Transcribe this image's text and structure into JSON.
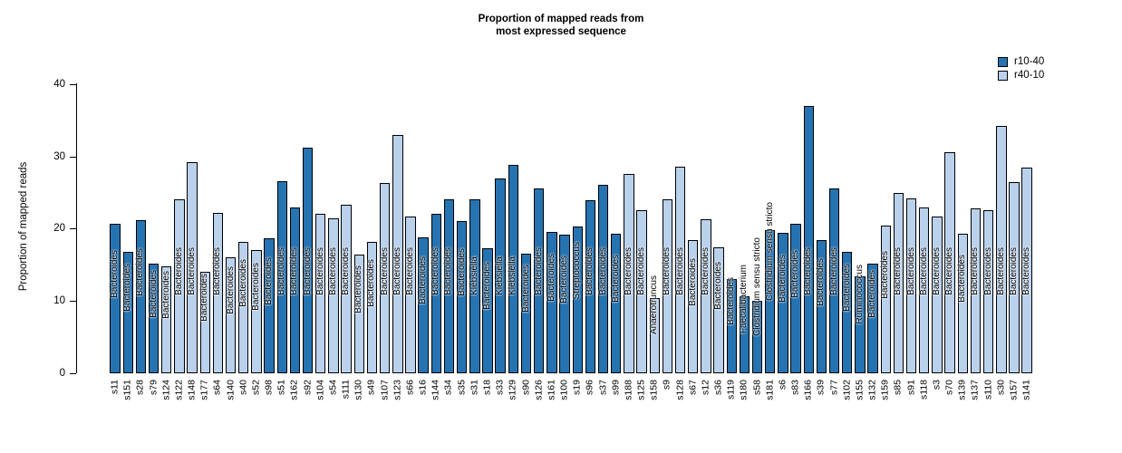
{
  "title": {
    "line1": "Proportion of mapped reads from",
    "line2": "most expressed sequence"
  },
  "y_axis": {
    "label": "Proportion of mapped reads",
    "ticks": [
      0,
      10,
      20,
      30,
      40
    ]
  },
  "legend": {
    "items": [
      {
        "label": "r10-40",
        "color": "#2673B2"
      },
      {
        "label": "r40-10",
        "color": "#BAD1EC"
      }
    ]
  },
  "chart_data": {
    "type": "bar",
    "title": "Proportion of mapped reads from most expressed sequence",
    "xlabel": "",
    "ylabel": "Proportion of mapped reads",
    "ylim": [
      0,
      40
    ],
    "grid": false,
    "legend_position": "top-right",
    "series_colors": {
      "r10-40": "#2673B2",
      "r40-10": "#BAD1EC"
    },
    "bars": [
      {
        "sample": "s11",
        "organism": "Bacteroides",
        "value": 20.7,
        "group": "r10-40"
      },
      {
        "sample": "s151",
        "organism": "Bacteroides",
        "value": 16.8,
        "group": "r10-40"
      },
      {
        "sample": "s28",
        "organism": "Bacteroides",
        "value": 21.2,
        "group": "r10-40"
      },
      {
        "sample": "s79",
        "organism": "Bacteroides",
        "value": 15.1,
        "group": "r10-40"
      },
      {
        "sample": "s124",
        "organism": "Bacteroides",
        "value": 14.8,
        "group": "r40-10"
      },
      {
        "sample": "s122",
        "organism": "Bacteroides",
        "value": 24.1,
        "group": "r40-10"
      },
      {
        "sample": "s148",
        "organism": "Bacteroides",
        "value": 29.2,
        "group": "r40-10"
      },
      {
        "sample": "s177",
        "organism": "Bacteroides",
        "value": 14.0,
        "group": "r40-10"
      },
      {
        "sample": "s64",
        "organism": "Bacteroides",
        "value": 22.2,
        "group": "r40-10"
      },
      {
        "sample": "s140",
        "organism": "Bacteroides",
        "value": 16.0,
        "group": "r40-10"
      },
      {
        "sample": "s40",
        "organism": "Bacteroides",
        "value": 18.2,
        "group": "r40-10"
      },
      {
        "sample": "s52",
        "organism": "Bacteroides",
        "value": 17.1,
        "group": "r40-10"
      },
      {
        "sample": "s98",
        "organism": "Bacteroides",
        "value": 18.7,
        "group": "r10-40"
      },
      {
        "sample": "s51",
        "organism": "Bacteroides",
        "value": 26.6,
        "group": "r10-40"
      },
      {
        "sample": "s162",
        "organism": "Bacteroides",
        "value": 22.9,
        "group": "r10-40"
      },
      {
        "sample": "s92",
        "organism": "Bacteroides",
        "value": 31.2,
        "group": "r10-40"
      },
      {
        "sample": "s104",
        "organism": "Bacteroides",
        "value": 22.0,
        "group": "r40-10"
      },
      {
        "sample": "s54",
        "organism": "Bacteroides",
        "value": 21.4,
        "group": "r40-10"
      },
      {
        "sample": "s111",
        "organism": "Bacteroides",
        "value": 23.3,
        "group": "r40-10"
      },
      {
        "sample": "s130",
        "organism": "Bacteroides",
        "value": 16.4,
        "group": "r40-10"
      },
      {
        "sample": "s49",
        "organism": "Bacteroides",
        "value": 18.2,
        "group": "r40-10"
      },
      {
        "sample": "s107",
        "organism": "Bacteroides",
        "value": 26.3,
        "group": "r40-10"
      },
      {
        "sample": "s123",
        "organism": "Bacteroides",
        "value": 32.9,
        "group": "r40-10"
      },
      {
        "sample": "s66",
        "organism": "Bacteroides",
        "value": 21.7,
        "group": "r40-10"
      },
      {
        "sample": "s16",
        "organism": "Bacteroides",
        "value": 18.8,
        "group": "r10-40"
      },
      {
        "sample": "s144",
        "organism": "Bacteroides",
        "value": 22.1,
        "group": "r10-40"
      },
      {
        "sample": "s34",
        "organism": "Bacteroides",
        "value": 24.0,
        "group": "r10-40"
      },
      {
        "sample": "s35",
        "organism": "Bacteroides",
        "value": 21.0,
        "group": "r10-40"
      },
      {
        "sample": "s31",
        "organism": "Klebsiella",
        "value": 24.1,
        "group": "r10-40"
      },
      {
        "sample": "s18",
        "organism": "Bacteroides",
        "value": 17.3,
        "group": "r10-40"
      },
      {
        "sample": "s33",
        "organism": "Klebsiella",
        "value": 26.9,
        "group": "r10-40"
      },
      {
        "sample": "s129",
        "organism": "Klebsiella",
        "value": 28.8,
        "group": "r10-40"
      },
      {
        "sample": "s90",
        "organism": "Bacteroides",
        "value": 16.6,
        "group": "r10-40"
      },
      {
        "sample": "s126",
        "organism": "Bacteroides",
        "value": 25.6,
        "group": "r10-40"
      },
      {
        "sample": "s161",
        "organism": "Bacteroides",
        "value": 19.6,
        "group": "r10-40"
      },
      {
        "sample": "s100",
        "organism": "Bacteroides",
        "value": 19.2,
        "group": "r10-40"
      },
      {
        "sample": "s19",
        "organism": "Streptococcus",
        "value": 20.3,
        "group": "r10-40"
      },
      {
        "sample": "s96",
        "organism": "Bacteroides",
        "value": 23.9,
        "group": "r10-40"
      },
      {
        "sample": "s37",
        "organism": "Bacteroides",
        "value": 26.1,
        "group": "r10-40"
      },
      {
        "sample": "s99",
        "organism": "Bacteroides",
        "value": 19.3,
        "group": "r10-40"
      },
      {
        "sample": "s188",
        "organism": "Bacteroides",
        "value": 27.6,
        "group": "r40-10"
      },
      {
        "sample": "s125",
        "organism": "Bacteroides",
        "value": 22.6,
        "group": "r40-10"
      },
      {
        "sample": "s158",
        "organism": "Anaerotruncus",
        "value": 10.4,
        "group": "r40-10"
      },
      {
        "sample": "s9",
        "organism": "Bacteroides",
        "value": 24.1,
        "group": "r40-10"
      },
      {
        "sample": "s128",
        "organism": "Bacteroides",
        "value": 28.6,
        "group": "r40-10"
      },
      {
        "sample": "s67",
        "organism": "Bacteroides",
        "value": 18.4,
        "group": "r40-10"
      },
      {
        "sample": "s12",
        "organism": "Bacteroides",
        "value": 21.3,
        "group": "r40-10"
      },
      {
        "sample": "s36",
        "organism": "Bacteroides",
        "value": 17.4,
        "group": "r40-10"
      },
      {
        "sample": "s119",
        "organism": "Bacteroides",
        "value": 13.0,
        "group": "r10-40"
      },
      {
        "sample": "s180",
        "organism": "Faecalibacterium",
        "value": 10.7,
        "group": "r10-40"
      },
      {
        "sample": "s58",
        "organism": "Clostridium sensu stricto",
        "value": 10.0,
        "group": "r10-40"
      },
      {
        "sample": "s181",
        "organism": "Clostridium sensu stricto",
        "value": 19.8,
        "group": "r10-40"
      },
      {
        "sample": "s6",
        "organism": "Bacteroides",
        "value": 19.4,
        "group": "r10-40"
      },
      {
        "sample": "s83",
        "organism": "Bacteroides",
        "value": 20.7,
        "group": "r10-40"
      },
      {
        "sample": "s166",
        "organism": "Bacteroides",
        "value": 37.0,
        "group": "r10-40"
      },
      {
        "sample": "s39",
        "organism": "Bacteroides",
        "value": 18.4,
        "group": "r10-40"
      },
      {
        "sample": "s77",
        "organism": "Bacteroides",
        "value": 25.6,
        "group": "r10-40"
      },
      {
        "sample": "s102",
        "organism": "Bacteroides",
        "value": 16.8,
        "group": "r10-40"
      },
      {
        "sample": "s155",
        "organism": "Ruminococcus",
        "value": 13.4,
        "group": "r10-40"
      },
      {
        "sample": "s132",
        "organism": "Bacteroides",
        "value": 15.2,
        "group": "r10-40"
      },
      {
        "sample": "s159",
        "organism": "Bacteroides",
        "value": 20.4,
        "group": "r40-10"
      },
      {
        "sample": "s85",
        "organism": "Bacteroides",
        "value": 24.9,
        "group": "r40-10"
      },
      {
        "sample": "s91",
        "organism": "Bacteroides",
        "value": 24.2,
        "group": "r40-10"
      },
      {
        "sample": "s118",
        "organism": "Bacteroides",
        "value": 22.9,
        "group": "r40-10"
      },
      {
        "sample": "s3",
        "organism": "Bacteroides",
        "value": 21.7,
        "group": "r40-10"
      },
      {
        "sample": "s70",
        "organism": "Bacteroides",
        "value": 30.6,
        "group": "r40-10"
      },
      {
        "sample": "s139",
        "organism": "Bacteroides",
        "value": 19.3,
        "group": "r40-10"
      },
      {
        "sample": "s137",
        "organism": "Bacteroides",
        "value": 22.8,
        "group": "r40-10"
      },
      {
        "sample": "s110",
        "organism": "Bacteroides",
        "value": 22.5,
        "group": "r40-10"
      },
      {
        "sample": "s30",
        "organism": "Bacteroides",
        "value": 34.2,
        "group": "r40-10"
      },
      {
        "sample": "s157",
        "organism": "Bacteroides",
        "value": 26.4,
        "group": "r40-10"
      },
      {
        "sample": "s141",
        "organism": "Bacteroides",
        "value": 28.4,
        "group": "r40-10"
      }
    ]
  }
}
